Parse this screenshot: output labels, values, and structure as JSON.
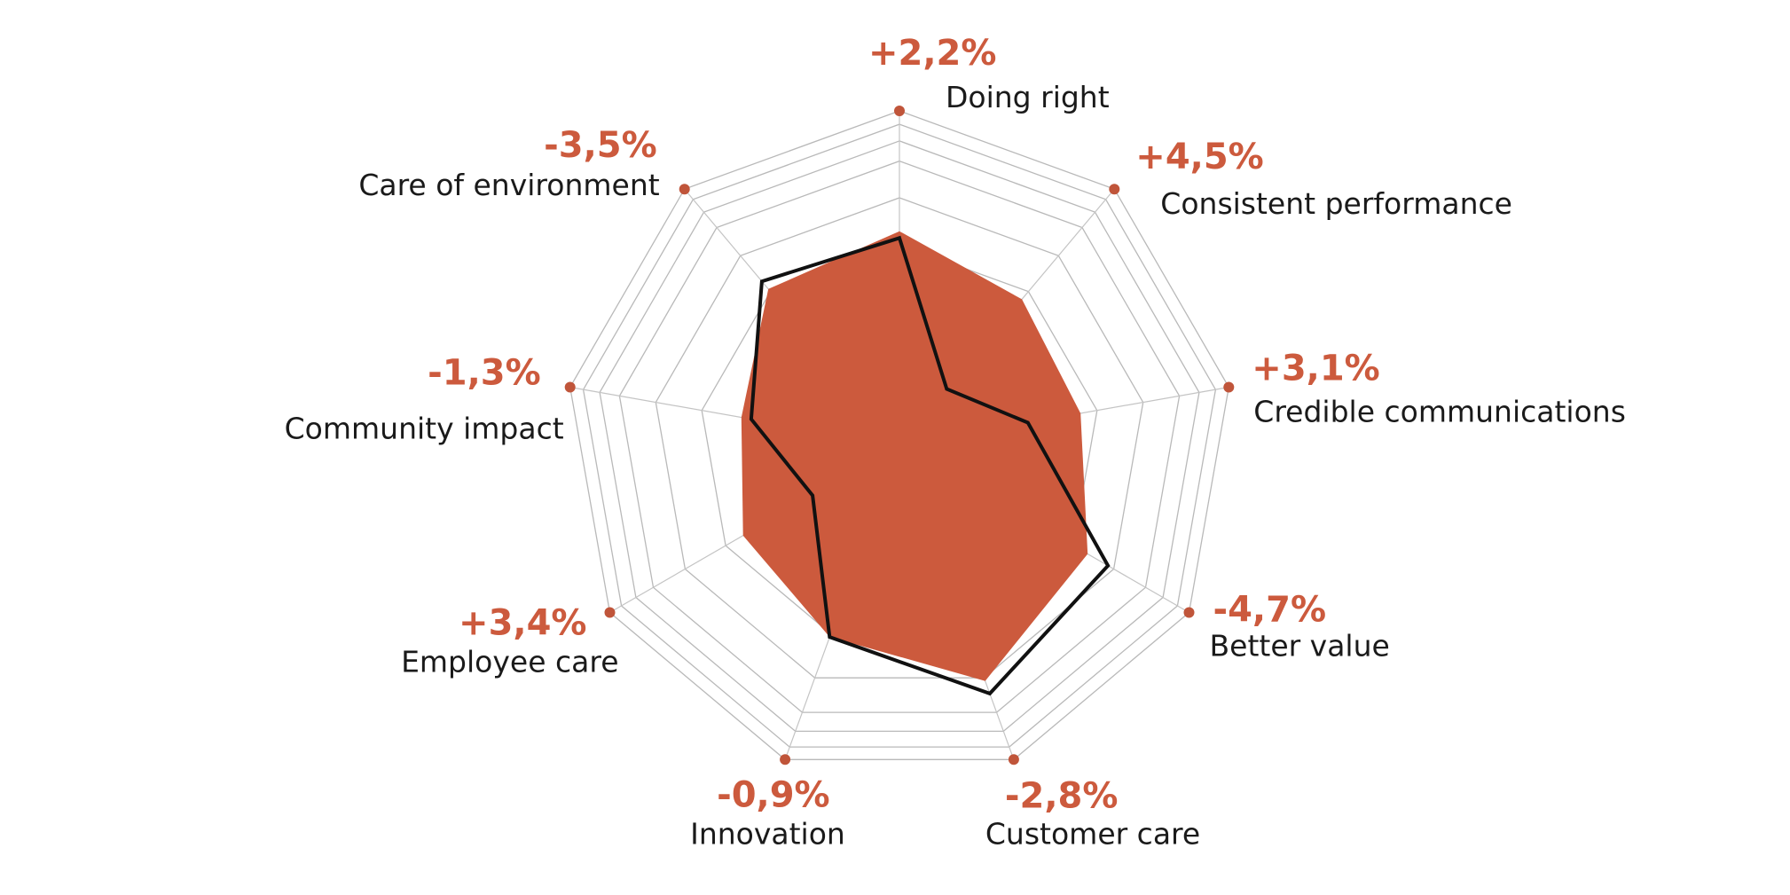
{
  "chart_data": {
    "type": "radar",
    "title": "",
    "scale": {
      "min": 0,
      "max": 1
    },
    "grid": true,
    "categories": [
      "Doing right",
      "Consistent performance",
      "Credible communications",
      "Better value",
      "Customer care",
      "Innovation",
      "Employee care",
      "Community impact",
      "Care of environment"
    ],
    "changes": [
      "+2,2%",
      "+4,5%",
      "+3,1%",
      "-4,7%",
      "-2,8%",
      "-0,9%",
      "+3,4%",
      "-1,3%",
      "-3,5%"
    ],
    "series": [
      {
        "name": "filled",
        "style": "area",
        "color": "#cc5a3d",
        "values": [
          0.64,
          0.57,
          0.55,
          0.65,
          0.75,
          0.61,
          0.54,
          0.48,
          0.61
        ]
      },
      {
        "name": "outline",
        "style": "line",
        "color": "#111111",
        "values": [
          0.62,
          0.22,
          0.39,
          0.72,
          0.79,
          0.61,
          0.3,
          0.45,
          0.64
        ]
      }
    ]
  }
}
